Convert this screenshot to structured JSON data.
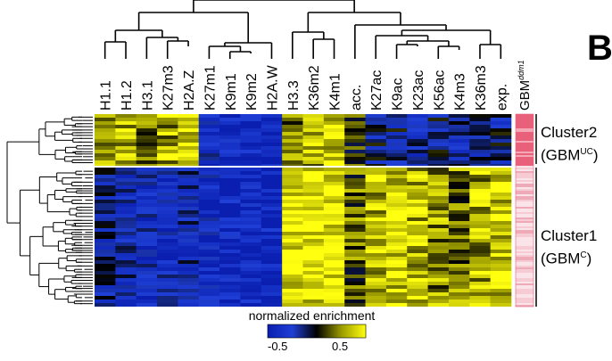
{
  "panel_letter": "B",
  "chart_data": {
    "type": "heatmap",
    "columns": [
      "H1.1",
      "H1.2",
      "H3.1",
      "K27m3",
      "H2A.Z",
      "K27m1",
      "K9m1",
      "K9m2",
      "H2A.W",
      "H3.3",
      "K36m2",
      "K4m1",
      "acc.",
      "K27ac",
      "K9ac",
      "K23ac",
      "K56ac",
      "K4m3",
      "K36m3",
      "exp."
    ],
    "annotation_column": {
      "label": "GBM",
      "superscript": "ddm1"
    },
    "clusters": [
      {
        "name": "Cluster2",
        "label_main": "(GBM",
        "label_sup": "UC",
        "label_close": ")",
        "row_fraction": 0.27,
        "mean_values": [
          0.3,
          0.3,
          0.2,
          0.3,
          0.4,
          -0.35,
          -0.45,
          -0.45,
          -0.45,
          0.2,
          0.3,
          0.35,
          0.1,
          -0.1,
          -0.15,
          -0.25,
          -0.15,
          -0.2,
          -0.15,
          -0.15
        ]
      },
      {
        "name": "Cluster1",
        "label_main": "(GBM",
        "label_sup": "C",
        "label_close": ")",
        "row_fraction": 0.73,
        "mean_values": [
          -0.2,
          -0.25,
          -0.3,
          -0.3,
          -0.25,
          -0.4,
          -0.45,
          -0.45,
          -0.45,
          0.45,
          0.45,
          0.45,
          0.15,
          0.35,
          0.4,
          0.35,
          0.25,
          0.2,
          0.3,
          0.4
        ]
      }
    ],
    "colorbar": {
      "title": "normalized enrichment",
      "min": -0.5,
      "max": 0.5,
      "tick_labels": [
        "-0.5",
        "0.5"
      ],
      "colors": [
        "#0a1fb0",
        "#1f3fd6",
        "#000000",
        "#9a9a00",
        "#ffff10"
      ]
    },
    "annotation_colors": {
      "cluster2": "#e8607a",
      "cluster1": "#f7cbd4"
    }
  }
}
